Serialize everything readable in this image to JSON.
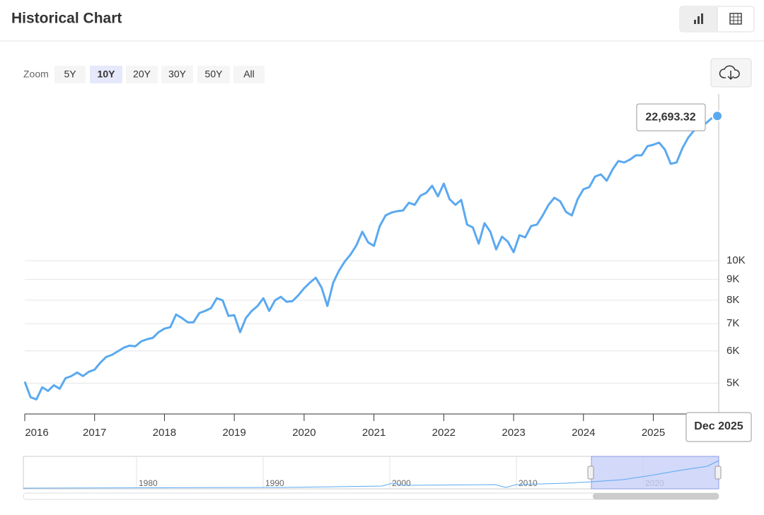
{
  "header": {
    "title": "Historical Chart"
  },
  "zoom": {
    "label": "Zoom",
    "options": [
      "5Y",
      "10Y",
      "20Y",
      "30Y",
      "50Y",
      "All"
    ],
    "active": 1
  },
  "navigator": {
    "labels": [
      "1980",
      "1990",
      "2000",
      "2010",
      "2020"
    ]
  },
  "chart_data": {
    "type": "line",
    "log_scale": true,
    "grid": true,
    "x": [
      "Jan 2016",
      "Feb 2016",
      "Mar 2016",
      "Apr 2016",
      "May 2016",
      "Jun 2016",
      "Jul 2016",
      "Aug 2016",
      "Sep 2016",
      "Oct 2016",
      "Nov 2016",
      "Dec 2016",
      "Jan 2017",
      "Feb 2017",
      "Mar 2017",
      "Apr 2017",
      "May 2017",
      "Jun 2017",
      "Jul 2017",
      "Aug 2017",
      "Sep 2017",
      "Oct 2017",
      "Nov 2017",
      "Dec 2017",
      "Jan 2018",
      "Feb 2018",
      "Mar 2018",
      "Apr 2018",
      "May 2018",
      "Jun 2018",
      "Jul 2018",
      "Aug 2018",
      "Sep 2018",
      "Oct 2018",
      "Nov 2018",
      "Dec 2018",
      "Jan 2019",
      "Feb 2019",
      "Mar 2019",
      "Apr 2019",
      "May 2019",
      "Jun 2019",
      "Jul 2019",
      "Aug 2019",
      "Sep 2019",
      "Oct 2019",
      "Nov 2019",
      "Dec 2019",
      "Jan 2020",
      "Feb 2020",
      "Mar 2020",
      "Apr 2020",
      "May 2020",
      "Jun 2020",
      "Jul 2020",
      "Aug 2020",
      "Sep 2020",
      "Oct 2020",
      "Nov 2020",
      "Dec 2020",
      "Jan 2021",
      "Feb 2021",
      "Mar 2021",
      "Apr 2021",
      "May 2021",
      "Jun 2021",
      "Jul 2021",
      "Aug 2021",
      "Sep 2021",
      "Oct 2021",
      "Nov 2021",
      "Dec 2021",
      "Jan 2022",
      "Feb 2022",
      "Mar 2022",
      "Apr 2022",
      "May 2022",
      "Jun 2022",
      "Jul 2022",
      "Aug 2022",
      "Sep 2022",
      "Oct 2022",
      "Nov 2022",
      "Dec 2022",
      "Jan 2023",
      "Feb 2023",
      "Mar 2023",
      "Apr 2023",
      "May 2023",
      "Jun 2023",
      "Jul 2023",
      "Aug 2023",
      "Sep 2023",
      "Oct 2023",
      "Nov 2023",
      "Dec 2023",
      "Jan 2024",
      "Feb 2024",
      "Mar 2024",
      "Apr 2024",
      "May 2024",
      "Jun 2024",
      "Jul 2024",
      "Aug 2024",
      "Sep 2024",
      "Oct 2024",
      "Nov 2024",
      "Dec 2024",
      "Jan 2025",
      "Feb 2025",
      "Mar 2025",
      "Apr 2025",
      "May 2025",
      "Jun 2025",
      "Jul 2025",
      "Aug 2025",
      "Sep 2025",
      "Oct 2025",
      "Nov 2025",
      "Dec 2025"
    ],
    "series": [
      {
        "color": "#5aa9f0",
        "values": [
          5042,
          4617,
          4561,
          4884,
          4786,
          4943,
          4844,
          5143,
          5205,
          5311,
          5205,
          5333,
          5398,
          5618,
          5801,
          5871,
          5990,
          6111,
          6185,
          6160,
          6334,
          6411,
          6462,
          6672,
          6808,
          6863,
          7376,
          7229,
          7058,
          7058,
          7436,
          7526,
          7648,
          8087,
          7990,
          7317,
          7347,
          6672,
          7229,
          7526,
          7740,
          8087,
          7526,
          7990,
          8153,
          7925,
          7957,
          8219,
          8555,
          8833,
          9084,
          8590,
          7740,
          8833,
          9455,
          9961,
          10368,
          10922,
          11784,
          11096,
          10877,
          12168,
          12920,
          13131,
          13235,
          13290,
          13885,
          13720,
          14454,
          14689,
          15286,
          14397,
          15472,
          14164,
          13720,
          14108,
          12267,
          12071,
          11009,
          12365,
          11784,
          10661,
          11458,
          11143,
          10493,
          11552,
          11414,
          12168,
          12267,
          12920,
          13720,
          14283,
          13996,
          13183,
          12920,
          14164,
          14988,
          15168,
          16106,
          16300,
          15726,
          16761,
          17584,
          17443,
          17727,
          18156,
          18156,
          19125,
          19280,
          19513,
          18750,
          17305,
          17443,
          18902,
          20073,
          20893,
          21576,
          21752,
          22373,
          22693.32
        ]
      }
    ],
    "tooltip_label": "22,693.32",
    "xticks": [
      2016,
      2017,
      2018,
      2019,
      2020,
      2021,
      2022,
      2023,
      2024,
      2025
    ],
    "ylim": [
      4200,
      25700
    ],
    "yticks": [
      {
        "value": 5000,
        "label": "5K"
      },
      {
        "value": 6000,
        "label": "6K"
      },
      {
        "value": 7000,
        "label": "7K"
      },
      {
        "value": 8000,
        "label": "8K"
      },
      {
        "value": 9000,
        "label": "9K"
      },
      {
        "value": 10000,
        "label": "10K"
      }
    ]
  }
}
